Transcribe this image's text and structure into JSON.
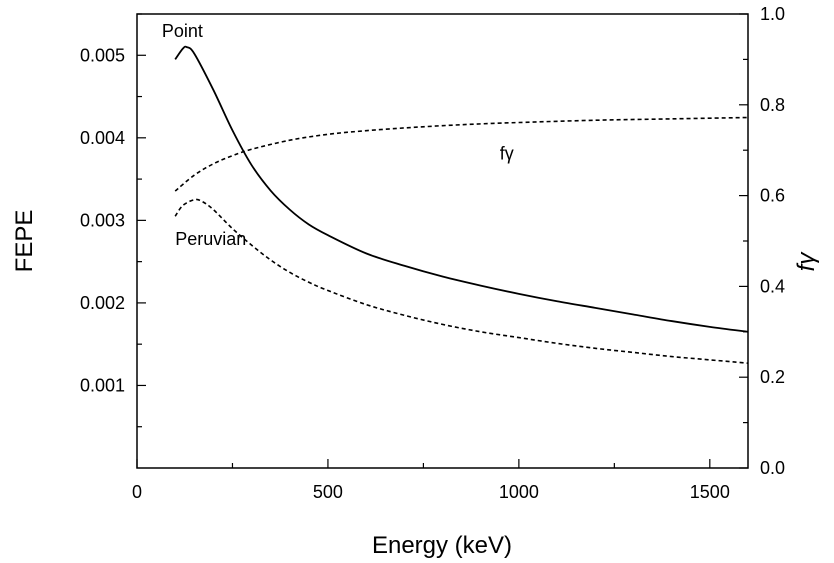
{
  "chart_data": {
    "type": "line",
    "title": "",
    "xlabel": "Energy (keV)",
    "ylabel": "FEPE",
    "y2label": "fγ",
    "xlim": [
      0,
      1600
    ],
    "ylim": [
      0,
      0.0055
    ],
    "y2lim": [
      0.0,
      1.0
    ],
    "x_ticks": [
      0,
      500,
      1000,
      1500
    ],
    "x_tick_labels": [
      "0",
      "500",
      "1000",
      "1500"
    ],
    "y_ticks": [
      0.001,
      0.002,
      0.003,
      0.004,
      0.005
    ],
    "y_tick_labels": [
      "0.001",
      "0.002",
      "0.003",
      "0.004",
      "0.005"
    ],
    "y2_ticks": [
      0.0,
      0.2,
      0.4,
      0.6,
      0.8,
      1.0
    ],
    "y2_tick_labels": [
      "0.0",
      "0.2",
      "0.4",
      "0.6",
      "0.8",
      "1.0"
    ],
    "grid": false,
    "legend": "none",
    "series": [
      {
        "axis": "left",
        "style": "solid",
        "x": [
          100,
          120,
          130,
          150,
          200,
          250,
          300,
          350,
          400,
          450,
          500,
          600,
          700,
          800,
          900,
          1000,
          1100,
          1200,
          1300,
          1400,
          1500,
          1600
        ],
        "values": [
          0.00495,
          0.00508,
          0.0051,
          0.00502,
          0.00458,
          0.00409,
          0.00367,
          0.00336,
          0.00313,
          0.00295,
          0.00282,
          0.0026,
          0.00245,
          0.00232,
          0.00221,
          0.00211,
          0.00202,
          0.00194,
          0.00186,
          0.00178,
          0.00171,
          0.00165
        ]
      },
      {
        "axis": "left",
        "style": "dashed",
        "x": [
          100,
          120,
          150,
          170,
          200,
          250,
          300,
          350,
          400,
          450,
          500,
          600,
          700,
          800,
          900,
          1000,
          1100,
          1200,
          1300,
          1400,
          1500,
          1600
        ],
        "values": [
          0.00305,
          0.00318,
          0.00325,
          0.00323,
          0.00313,
          0.0029,
          0.0027,
          0.00252,
          0.00237,
          0.00225,
          0.00215,
          0.00198,
          0.00185,
          0.00174,
          0.00165,
          0.00158,
          0.00151,
          0.00145,
          0.0014,
          0.00135,
          0.00131,
          0.00127
        ]
      },
      {
        "axis": "right",
        "style": "dashed",
        "x": [
          100,
          150,
          200,
          250,
          300,
          400,
          500,
          600,
          700,
          800,
          900,
          1000,
          1200,
          1400,
          1600
        ],
        "values": [
          0.61,
          0.645,
          0.67,
          0.688,
          0.702,
          0.722,
          0.735,
          0.743,
          0.749,
          0.754,
          0.758,
          0.761,
          0.766,
          0.769,
          0.772
        ]
      }
    ],
    "annotations": [
      {
        "text": "Point",
        "x": 65,
        "y": 0.00522
      },
      {
        "text": "Peruvian",
        "x": 100,
        "y": 0.0027
      },
      {
        "text": "fγ",
        "x": 950,
        "y": 0.68,
        "axis": "right"
      }
    ]
  }
}
